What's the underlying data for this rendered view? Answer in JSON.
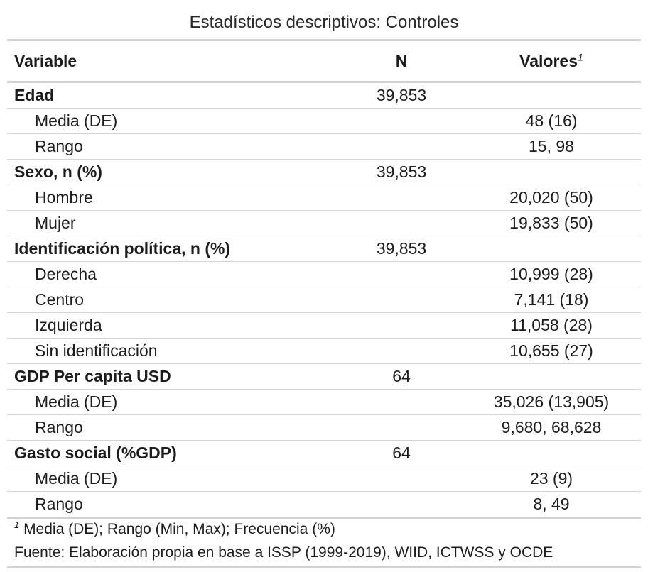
{
  "title": "Estadísticos descriptivos: Controles",
  "header": {
    "variable": "Variable",
    "n": "N",
    "values": "Valores",
    "values_footnote_mark": "1"
  },
  "rows": [
    {
      "type": "group",
      "label": "Edad",
      "n": "39,853",
      "value": ""
    },
    {
      "type": "level",
      "label": "Media (DE)",
      "n": "",
      "value": "48 (16)"
    },
    {
      "type": "level",
      "label": "Rango",
      "n": "",
      "value": "15, 98"
    },
    {
      "type": "group",
      "label": "Sexo, n (%)",
      "n": "39,853",
      "value": ""
    },
    {
      "type": "level",
      "label": "Hombre",
      "n": "",
      "value": "20,020 (50)"
    },
    {
      "type": "level",
      "label": "Mujer",
      "n": "",
      "value": "19,833 (50)"
    },
    {
      "type": "group",
      "label": "Identificación política, n (%)",
      "n": "39,853",
      "value": ""
    },
    {
      "type": "level",
      "label": "Derecha",
      "n": "",
      "value": "10,999 (28)"
    },
    {
      "type": "level",
      "label": "Centro",
      "n": "",
      "value": "7,141 (18)"
    },
    {
      "type": "level",
      "label": "Izquierda",
      "n": "",
      "value": "11,058 (28)"
    },
    {
      "type": "level",
      "label": "Sin identificación",
      "n": "",
      "value": "10,655 (27)"
    },
    {
      "type": "group",
      "label": "GDP Per capita USD",
      "n": "64",
      "value": ""
    },
    {
      "type": "level",
      "label": "Media (DE)",
      "n": "",
      "value": "35,026 (13,905)"
    },
    {
      "type": "level",
      "label": "Rango",
      "n": "",
      "value": "9,680, 68,628"
    },
    {
      "type": "group",
      "label": "Gasto social (%GDP)",
      "n": "64",
      "value": ""
    },
    {
      "type": "level",
      "label": "Media (DE)",
      "n": "",
      "value": "23 (9)"
    },
    {
      "type": "level",
      "label": "Rango",
      "n": "",
      "value": "8, 49"
    }
  ],
  "footnotes": {
    "note_mark": "1",
    "note_text": " Media (DE); Rango (Min, Max); Frecuencia (%)",
    "source": "Fuente: Elaboración propia en base a ISSP (1999-2019), WIID, ICTWSS y OCDE"
  }
}
